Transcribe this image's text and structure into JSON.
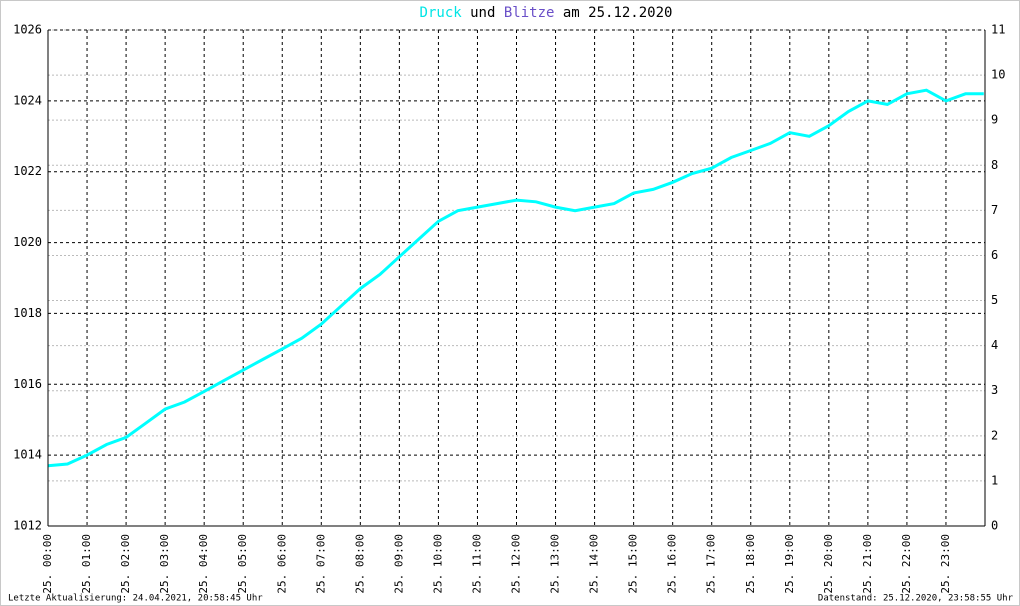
{
  "chart_data": {
    "type": "line",
    "title_parts": [
      {
        "text": "Druck",
        "color": "#00e5e5"
      },
      {
        "text": "und",
        "color": "#000000"
      },
      {
        "text": "Blitze",
        "color": "#6a4fc8"
      },
      {
        "text": "am 25.12.2020",
        "color": "#000000"
      }
    ],
    "x": [
      0,
      0.5,
      1,
      1.5,
      2,
      2.5,
      3,
      3.5,
      4,
      4.5,
      5,
      5.5,
      6,
      6.5,
      7,
      7.5,
      8,
      8.5,
      9,
      9.5,
      10,
      10.5,
      11,
      11.5,
      12,
      12.5,
      13,
      13.5,
      14,
      14.5,
      15,
      15.5,
      16,
      16.5,
      17,
      17.5,
      18,
      18.5,
      19,
      19.5,
      20,
      20.5,
      21,
      21.5,
      22,
      22.5,
      23,
      23.5,
      23.97
    ],
    "series": [
      {
        "name": "Druck",
        "color": "#00ffff",
        "values": [
          1013.7,
          1013.75,
          1014.0,
          1014.3,
          1014.5,
          1014.9,
          1015.3,
          1015.5,
          1015.8,
          1016.1,
          1016.4,
          1016.7,
          1017.0,
          1017.3,
          1017.7,
          1018.2,
          1018.7,
          1019.1,
          1019.6,
          1020.1,
          1020.6,
          1020.9,
          1021.0,
          1021.1,
          1021.2,
          1021.15,
          1021.0,
          1020.9,
          1021.0,
          1021.1,
          1021.4,
          1021.5,
          1021.7,
          1021.95,
          1022.1,
          1022.4,
          1022.6,
          1022.8,
          1023.1,
          1023.0,
          1023.3,
          1023.7,
          1024.0,
          1023.9,
          1024.2,
          1024.3,
          1024.0,
          1024.2,
          1024.2
        ]
      }
    ],
    "xlim": [
      0,
      24
    ],
    "xticks": [
      {
        "value": 0,
        "label": "25. 00:00"
      },
      {
        "value": 1,
        "label": "25. 01:00"
      },
      {
        "value": 2,
        "label": "25. 02:00"
      },
      {
        "value": 3,
        "label": "25. 03:00"
      },
      {
        "value": 4,
        "label": "25. 04:00"
      },
      {
        "value": 5,
        "label": "25. 05:00"
      },
      {
        "value": 6,
        "label": "25. 06:00"
      },
      {
        "value": 7,
        "label": "25. 07:00"
      },
      {
        "value": 8,
        "label": "25. 08:00"
      },
      {
        "value": 9,
        "label": "25. 09:00"
      },
      {
        "value": 10,
        "label": "25. 10:00"
      },
      {
        "value": 11,
        "label": "25. 11:00"
      },
      {
        "value": 12,
        "label": "25. 12:00"
      },
      {
        "value": 13,
        "label": "25. 13:00"
      },
      {
        "value": 14,
        "label": "25. 14:00"
      },
      {
        "value": 15,
        "label": "25. 15:00"
      },
      {
        "value": 16,
        "label": "25. 16:00"
      },
      {
        "value": 17,
        "label": "25. 17:00"
      },
      {
        "value": 18,
        "label": "25. 18:00"
      },
      {
        "value": 19,
        "label": "25. 19:00"
      },
      {
        "value": 20,
        "label": "25. 20:00"
      },
      {
        "value": 21,
        "label": "25. 21:00"
      },
      {
        "value": 22,
        "label": "25. 22:00"
      },
      {
        "value": 23,
        "label": "25. 23:00"
      }
    ],
    "ylim": [
      1012,
      1026
    ],
    "yticks": [
      1012,
      1014,
      1016,
      1018,
      1020,
      1022,
      1024,
      1026
    ],
    "y2lim": [
      0,
      11
    ],
    "y2ticks": [
      0,
      1,
      2,
      3,
      4,
      5,
      6,
      7,
      8,
      9,
      10,
      11
    ],
    "grid": true,
    "footer_left": "Letzte Aktualisierung: 24.04.2021, 20:58:45 Uhr",
    "footer_right": "Datenstand: 25.12.2020, 23:58:55 Uhr"
  }
}
